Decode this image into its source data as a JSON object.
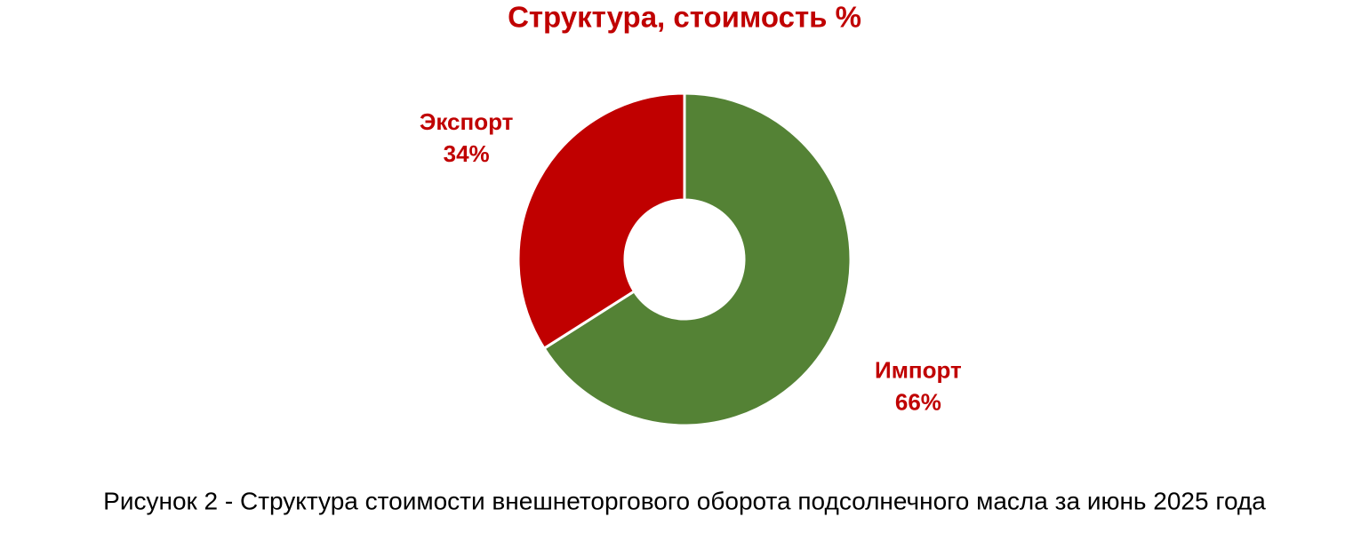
{
  "chart_data": {
    "type": "donut",
    "title": "Структура, стоимость %",
    "categories": [
      "Импорт",
      "Экспорт"
    ],
    "values": [
      66,
      34
    ],
    "value_labels": [
      "66%",
      "34%"
    ],
    "colors": [
      "#548235",
      "#c00000"
    ]
  },
  "caption": "Рисунок 2 - Структура стоимости внешнеторгового оборота подсолнечного масла за июнь 2025 года"
}
